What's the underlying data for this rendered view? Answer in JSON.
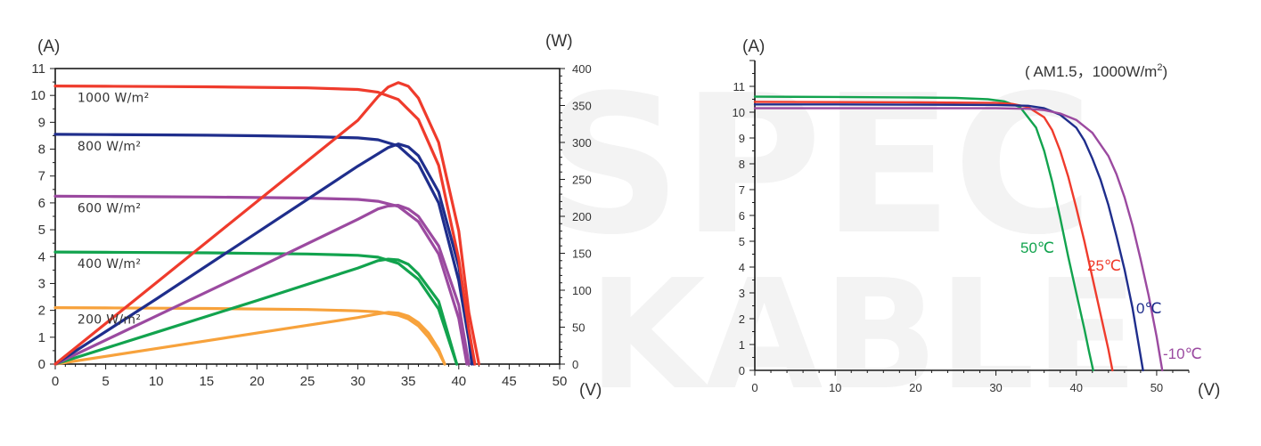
{
  "chart_data": [
    {
      "type": "line",
      "title": "",
      "y_unit_left": "(A)",
      "y_unit_right": "(W)",
      "x_unit": "(V)",
      "xlim": [
        0,
        50
      ],
      "ylim": [
        0,
        11
      ],
      "y2lim": [
        0,
        400
      ],
      "x_ticks": [
        "0",
        "5",
        "10",
        "15",
        "20",
        "25",
        "30",
        "35",
        "40",
        "45",
        "50"
      ],
      "y_ticks": [
        "0",
        "1",
        "2",
        "3",
        "4",
        "5",
        "6",
        "7",
        "8",
        "9",
        "10",
        "11"
      ],
      "y2_ticks": [
        "0",
        "50",
        "100",
        "150",
        "200",
        "250",
        "300",
        "350",
        "400"
      ],
      "grid": false,
      "series": [
        {
          "name": "1000 W/m²",
          "color": "#ef3b2c",
          "iv": {
            "x": [
              0,
              5,
              10,
              15,
              20,
              25,
              30,
              32,
              34,
              36,
              38,
              40,
              41,
              41.6
            ],
            "y": [
              10.35,
              10.34,
              10.33,
              10.32,
              10.3,
              10.28,
              10.22,
              10.12,
              9.85,
              9.1,
              7.4,
              3.9,
              1.3,
              0
            ]
          },
          "power": {
            "x": [
              0,
              10,
              20,
              30,
              32,
              33,
              34,
              35,
              36,
              38,
              40,
              41,
              42
            ],
            "y": [
              0,
              110,
              220,
              330,
              362,
              375,
              381,
              376,
              360,
              300,
              180,
              70,
              0
            ]
          }
        },
        {
          "name": "800 W/m²",
          "color": "#1f2e8c",
          "iv": {
            "x": [
              0,
              5,
              10,
              15,
              20,
              25,
              30,
              32,
              34,
              36,
              38,
              40,
              41,
              41.3
            ],
            "y": [
              8.55,
              8.54,
              8.53,
              8.52,
              8.5,
              8.47,
              8.42,
              8.35,
              8.12,
              7.45,
              6.0,
              3.1,
              0.9,
              0
            ]
          },
          "power": {
            "x": [
              0,
              10,
              20,
              30,
              33,
              34,
              35,
              36,
              38,
              40,
              41,
              41.5
            ],
            "y": [
              0,
              88,
              178,
              268,
              293,
              298,
              294,
              282,
              233,
              132,
              45,
              0
            ]
          }
        },
        {
          "name": "600 W/m²",
          "color": "#9b4aa0",
          "iv": {
            "x": [
              0,
              5,
              10,
              15,
              20,
              25,
              30,
              32,
              34,
              36,
              38,
              40,
              40.8
            ],
            "y": [
              6.25,
              6.24,
              6.23,
              6.22,
              6.2,
              6.18,
              6.13,
              6.06,
              5.87,
              5.3,
              4.1,
              1.7,
              0
            ]
          },
          "power": {
            "x": [
              0,
              10,
              20,
              30,
              32,
              33,
              34,
              35,
              36,
              38,
              40,
              41
            ],
            "y": [
              0,
              65,
              130,
              196,
              210,
              214,
              215,
              210,
              200,
              160,
              80,
              0
            ]
          }
        },
        {
          "name": "400 W/m²",
          "color": "#12a34e",
          "iv": {
            "x": [
              0,
              5,
              10,
              15,
              20,
              25,
              30,
              32,
              34,
              36,
              38,
              39.8
            ],
            "y": [
              4.17,
              4.16,
              4.15,
              4.14,
              4.12,
              4.1,
              4.05,
              3.98,
              3.75,
              3.15,
              2.05,
              0
            ]
          },
          "power": {
            "x": [
              0,
              10,
              20,
              30,
              32,
              33,
              34,
              35,
              36,
              38,
              39.8
            ],
            "y": [
              0,
              43,
              86,
              130,
              140,
              142,
              141,
              135,
              122,
              85,
              0
            ]
          }
        },
        {
          "name": "200 W/m²",
          "color": "#f7a23c",
          "iv": {
            "x": [
              0,
              5,
              10,
              15,
              20,
              25,
              30,
              32,
              34,
              35,
              36,
              37,
              38,
              38.6
            ],
            "y": [
              2.1,
              2.09,
              2.08,
              2.07,
              2.05,
              2.03,
              1.98,
              1.94,
              1.82,
              1.68,
              1.42,
              1.0,
              0.45,
              0
            ]
          },
          "power": {
            "x": [
              0,
              10,
              20,
              30,
              32,
              33,
              34,
              35,
              36,
              37,
              38,
              38.6
            ],
            "y": [
              0,
              21,
              42,
              63,
              68,
              70,
              69,
              65,
              56,
              42,
              20,
              0
            ]
          }
        }
      ]
    },
    {
      "type": "line",
      "title": "",
      "condition": "( AM1.5，1000W/m",
      "condition_sup": "2",
      "condition_end": ")",
      "y_unit": "(A)",
      "x_unit": "(V)",
      "xlim": [
        0,
        54
      ],
      "ylim": [
        0,
        12
      ],
      "x_ticks": [
        "0",
        "10",
        "20",
        "30",
        "40",
        "50"
      ],
      "y_ticks": [
        "0",
        "1",
        "2",
        "3",
        "4",
        "5",
        "6",
        "7",
        "8",
        "9",
        "10",
        "11"
      ],
      "grid": false,
      "series": [
        {
          "name": "50℃",
          "color": "#12a34e",
          "x": [
            0,
            10,
            20,
            25,
            29,
            31,
            33,
            35,
            36,
            37,
            38,
            39,
            40,
            41,
            41.6,
            42.1
          ],
          "y": [
            10.6,
            10.59,
            10.57,
            10.55,
            10.5,
            10.42,
            10.2,
            9.4,
            8.5,
            7.3,
            5.9,
            4.4,
            3.0,
            1.6,
            0.7,
            0
          ]
        },
        {
          "name": "25℃",
          "color": "#ef3b2c",
          "x": [
            0,
            10,
            20,
            30,
            32,
            34,
            36,
            37,
            38,
            39,
            40,
            41,
            42,
            43,
            44,
            44.5
          ],
          "y": [
            10.4,
            10.39,
            10.38,
            10.36,
            10.32,
            10.2,
            9.8,
            9.3,
            8.5,
            7.5,
            6.3,
            5.0,
            3.6,
            2.2,
            0.8,
            0
          ]
        },
        {
          "name": "0℃",
          "color": "#1f2e8c",
          "x": [
            0,
            10,
            20,
            30,
            34,
            36,
            38,
            40,
            41,
            42,
            43,
            44,
            45,
            46,
            47,
            48.3
          ],
          "y": [
            10.3,
            10.3,
            10.29,
            10.28,
            10.25,
            10.15,
            9.9,
            9.4,
            8.9,
            8.2,
            7.4,
            6.4,
            5.2,
            3.9,
            2.4,
            0
          ]
        },
        {
          "name": "-10℃",
          "color": "#9b4aa0",
          "x": [
            0,
            10,
            20,
            30,
            34,
            36,
            38,
            40,
            42,
            44,
            45,
            46,
            47,
            48,
            49,
            50,
            50.7
          ],
          "y": [
            10.15,
            10.15,
            10.15,
            10.15,
            10.13,
            10.08,
            9.95,
            9.7,
            9.2,
            8.3,
            7.6,
            6.7,
            5.6,
            4.3,
            2.9,
            1.3,
            0
          ]
        }
      ]
    }
  ],
  "watermark": {
    "line1": "SPEC",
    "line2": "KABLE",
    "color": "#f3f3f3"
  }
}
